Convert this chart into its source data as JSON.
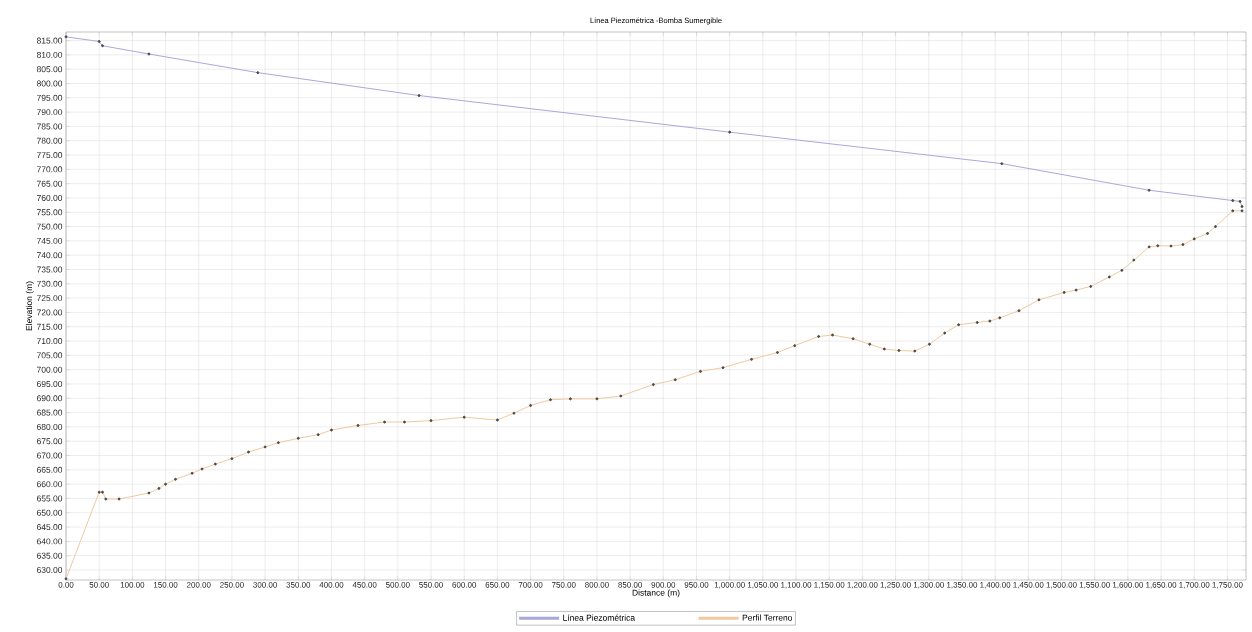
{
  "chart_data": {
    "type": "line",
    "title": "Línea Piezométrica -Bomba Sumergible",
    "xlabel": "Distance (m)",
    "ylabel": "Elevation (m)",
    "xlim": [
      0,
      1778
    ],
    "ylim": [
      626.5,
      818
    ],
    "xticks": [
      {
        "value": 0,
        "label": "0.00"
      },
      {
        "value": 50,
        "label": "50.00"
      },
      {
        "value": 100,
        "label": "100.00"
      },
      {
        "value": 150,
        "label": "150.00"
      },
      {
        "value": 200,
        "label": "200.00"
      },
      {
        "value": 250,
        "label": "250.00"
      },
      {
        "value": 300,
        "label": "300.00"
      },
      {
        "value": 350,
        "label": "350.00"
      },
      {
        "value": 400,
        "label": "400.00"
      },
      {
        "value": 450,
        "label": "450.00"
      },
      {
        "value": 500,
        "label": "500.00"
      },
      {
        "value": 550,
        "label": "550.00"
      },
      {
        "value": 600,
        "label": "600.00"
      },
      {
        "value": 650,
        "label": "650.00"
      },
      {
        "value": 700,
        "label": "700.00"
      },
      {
        "value": 750,
        "label": "750.00"
      },
      {
        "value": 800,
        "label": "800.00"
      },
      {
        "value": 850,
        "label": "850.00"
      },
      {
        "value": 900,
        "label": "900.00"
      },
      {
        "value": 950,
        "label": "950.00"
      },
      {
        "value": 1000,
        "label": "1,000.00"
      },
      {
        "value": 1050,
        "label": "1,050.00"
      },
      {
        "value": 1100,
        "label": "1,100.00"
      },
      {
        "value": 1150,
        "label": "1,150.00"
      },
      {
        "value": 1200,
        "label": "1,200.00"
      },
      {
        "value": 1250,
        "label": "1,250.00"
      },
      {
        "value": 1300,
        "label": "1,300.00"
      },
      {
        "value": 1350,
        "label": "1,350.00"
      },
      {
        "value": 1400,
        "label": "1,400.00"
      },
      {
        "value": 1450,
        "label": "1,450.00"
      },
      {
        "value": 1500,
        "label": "1,500.00"
      },
      {
        "value": 1550,
        "label": "1,550.00"
      },
      {
        "value": 1600,
        "label": "1,600.00"
      },
      {
        "value": 1650,
        "label": "1,650.00"
      },
      {
        "value": 1700,
        "label": "1,700.00"
      },
      {
        "value": 1750,
        "label": "1,750.00"
      }
    ],
    "yticks": [
      {
        "value": 630,
        "label": "630.00"
      },
      {
        "value": 635,
        "label": "635.00"
      },
      {
        "value": 640,
        "label": "640.00"
      },
      {
        "value": 645,
        "label": "645.00"
      },
      {
        "value": 650,
        "label": "650.00"
      },
      {
        "value": 655,
        "label": "655.00"
      },
      {
        "value": 660,
        "label": "660.00"
      },
      {
        "value": 665,
        "label": "665.00"
      },
      {
        "value": 670,
        "label": "670.00"
      },
      {
        "value": 675,
        "label": "675.00"
      },
      {
        "value": 680,
        "label": "680.00"
      },
      {
        "value": 685,
        "label": "685.00"
      },
      {
        "value": 690,
        "label": "690.00"
      },
      {
        "value": 695,
        "label": "695.00"
      },
      {
        "value": 700,
        "label": "700.00"
      },
      {
        "value": 705,
        "label": "705.00"
      },
      {
        "value": 710,
        "label": "710.00"
      },
      {
        "value": 715,
        "label": "715.00"
      },
      {
        "value": 720,
        "label": "720.00"
      },
      {
        "value": 725,
        "label": "725.00"
      },
      {
        "value": 730,
        "label": "730.00"
      },
      {
        "value": 735,
        "label": "735.00"
      },
      {
        "value": 740,
        "label": "740.00"
      },
      {
        "value": 745,
        "label": "745.00"
      },
      {
        "value": 750,
        "label": "750.00"
      },
      {
        "value": 755,
        "label": "755.00"
      },
      {
        "value": 760,
        "label": "760.00"
      },
      {
        "value": 765,
        "label": "765.00"
      },
      {
        "value": 770,
        "label": "770.00"
      },
      {
        "value": 775,
        "label": "775.00"
      },
      {
        "value": 780,
        "label": "780.00"
      },
      {
        "value": 785,
        "label": "785.00"
      },
      {
        "value": 790,
        "label": "790.00"
      },
      {
        "value": 795,
        "label": "795.00"
      },
      {
        "value": 800,
        "label": "800.00"
      },
      {
        "value": 805,
        "label": "805.00"
      },
      {
        "value": 810,
        "label": "810.00"
      },
      {
        "value": 815,
        "label": "815.00"
      }
    ],
    "grid": true,
    "legend": "bottom",
    "marker": "circle",
    "line_style": "solid",
    "series": [
      {
        "name": "Línea Piezométrica",
        "color": "#a9a9d9",
        "x": [
          0,
          50,
          55,
          125,
          289,
          532,
          1000,
          1410,
          1632,
          1758,
          1769,
          1772
        ],
        "values": [
          816.3,
          814.7,
          813.2,
          810.3,
          803.8,
          795.8,
          783.0,
          772.0,
          762.7,
          759.1,
          758.8,
          757.0
        ]
      },
      {
        "name": "Perfil Terreno",
        "color": "#f0c9a0",
        "x": [
          0,
          50,
          55,
          60,
          80,
          125,
          140,
          150,
          165,
          190,
          205,
          225,
          250,
          275,
          300,
          320,
          350,
          380,
          400,
          440,
          480,
          510,
          550,
          600,
          650,
          675,
          700,
          730,
          760,
          800,
          836,
          885,
          918,
          956,
          990,
          1033,
          1072,
          1098,
          1134,
          1155,
          1186,
          1211,
          1233,
          1255,
          1279,
          1301,
          1324,
          1345,
          1373,
          1392,
          1407,
          1436,
          1466,
          1504,
          1522,
          1544,
          1572,
          1591,
          1609,
          1632,
          1645,
          1665,
          1683,
          1700,
          1720,
          1732,
          1758,
          1772
        ],
        "values": [
          626.9,
          657.2,
          657.2,
          654.8,
          654.8,
          656.9,
          658.5,
          660.0,
          661.7,
          663.8,
          665.3,
          667.0,
          668.9,
          671.2,
          673.0,
          674.5,
          676.0,
          677.3,
          678.9,
          680.5,
          681.7,
          681.7,
          682.2,
          683.4,
          682.4,
          684.8,
          687.5,
          689.5,
          689.8,
          689.8,
          690.8,
          694.8,
          696.5,
          699.4,
          700.7,
          703.6,
          706.0,
          708.4,
          711.6,
          712.1,
          710.8,
          708.9,
          707.2,
          706.7,
          706.5,
          708.9,
          712.8,
          715.7,
          716.5,
          717.0,
          718.1,
          720.6,
          724.4,
          727.0,
          727.8,
          729.1,
          732.4,
          734.7,
          738.3,
          742.9,
          743.3,
          743.2,
          743.7,
          745.7,
          747.6,
          750.0,
          755.5,
          755.5
        ]
      }
    ]
  }
}
